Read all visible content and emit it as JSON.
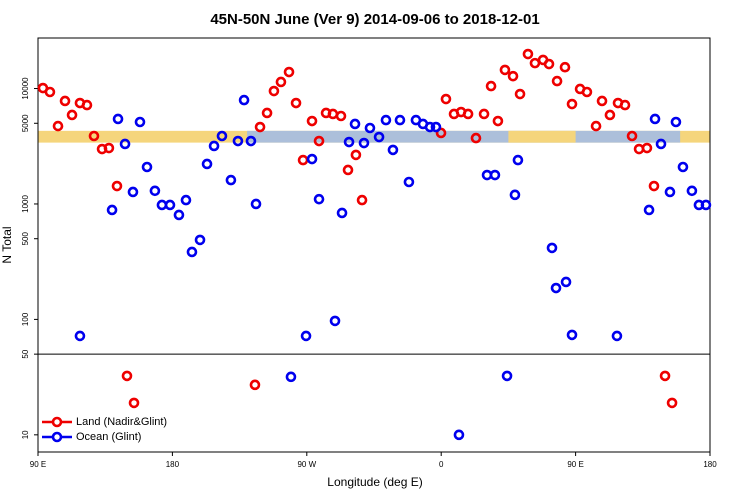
{
  "chart_data": {
    "type": "scatter",
    "title": "45N-50N June (Ver 9)   2014-09-06 to 2018-12-01",
    "xlabel": "Longitude (deg E)",
    "ylabel": "N Total",
    "log_y": true,
    "legend": "bottom-left",
    "xlim": [
      90,
      540
    ],
    "ylim": [
      7.1,
      27400
    ],
    "xticks": [
      {
        "value": 90,
        "label": "90 E"
      },
      180,
      {
        "value": 270,
        "label": "90 W"
      },
      {
        "value": 360,
        "label": "0"
      },
      {
        "value": 450,
        "label": "90 E"
      },
      {
        "value": 540,
        "label": "180"
      }
    ],
    "yticks": [
      10,
      50,
      100,
      500,
      1000,
      5000,
      10000
    ],
    "hline": 50,
    "band": {
      "ylim": [
        3400,
        4300
      ],
      "color": "#f5d57c",
      "color2": "#a8bedf"
    },
    "series": [
      {
        "name": "Land (Nadir&Glint)",
        "color": "#ee0000",
        "x": [
          93.3,
          98.0,
          103.4,
          108.1,
          112.8,
          118.1,
          122.8,
          127.5,
          132.9,
          137.5,
          142.9,
          149.6,
          154.3,
          235.3,
          238.7,
          243.4,
          248.0,
          252.7,
          258.1,
          262.8,
          267.5,
          273.5,
          278.2,
          282.9,
          287.5,
          292.9,
          297.6,
          302.9,
          307.0,
          359.9,
          363.2,
          368.6,
          373.3,
          378.0,
          383.3,
          388.7,
          393.4,
          398.0,
          402.7,
          408.1,
          412.8,
          418.1,
          422.8,
          428.2,
          432.2,
          437.6,
          442.9,
          447.6,
          453.0,
          457.6,
          463.7,
          467.7,
          473.0,
          478.4,
          483.1,
          487.8,
          492.5,
          497.8,
          502.5,
          509.9,
          514.6
        ],
        "values": [
          10100,
          9330,
          4730,
          7800,
          5900,
          7490,
          7190,
          3880,
          2990,
          3050,
          1430,
          32.4,
          18.9,
          27.1,
          4640,
          6140,
          9510,
          11400,
          13900,
          7490,
          2400,
          5230,
          3510,
          6140,
          6020,
          5780,
          1970,
          2660,
          1080,
          4120,
          8110,
          6020,
          6260,
          6020,
          3720,
          6020,
          10500,
          5230,
          14500,
          12800,
          8960,
          19900,
          16600,
          17700,
          16300,
          11600,
          15300,
          7340,
          9910,
          9330,
          4730,
          7800,
          5900,
          7490,
          7190,
          3880,
          2990,
          3050,
          1430,
          32.4,
          18.9
        ]
      },
      {
        "name": "Ocean (Glint)",
        "color": "#0000ee",
        "x": [
          118.1,
          139.6,
          143.6,
          148.3,
          153.6,
          158.3,
          163.0,
          168.3,
          173.0,
          178.4,
          184.4,
          189.1,
          193.1,
          198.5,
          203.2,
          207.9,
          213.2,
          219.2,
          223.9,
          228.0,
          232.6,
          236.0,
          259.4,
          269.5,
          273.5,
          278.2,
          288.9,
          293.6,
          298.3,
          302.3,
          308.3,
          312.3,
          318.4,
          323.0,
          327.7,
          332.4,
          338.4,
          343.1,
          347.8,
          352.5,
          356.5,
          371.9,
          390.7,
          396.0,
          404.1,
          409.4,
          411.4,
          434.2,
          436.9,
          443.6,
          447.6,
          477.7,
          499.2,
          503.2,
          507.2,
          513.2,
          517.2,
          521.9,
          527.9,
          532.6,
          537.3
        ],
        "values": [
          71.9,
          887,
          5450,
          3310,
          1270,
          5130,
          2090,
          1300,
          980,
          980,
          803,
          1080,
          384,
          488,
          2220,
          3180,
          3880,
          1610,
          3510,
          7940,
          3510,
          1000,
          31.8,
          71.9,
          2450,
          1100,
          97.0,
          836,
          3440,
          4930,
          3370,
          4550,
          3800,
          5330,
          2940,
          5330,
          1550,
          5330,
          4930,
          4640,
          4640,
          10,
          1780,
          1780,
          32.4,
          1200,
          2400,
          416,
          187,
          211,
          73.4,
          71.9,
          887,
          5450,
          3310,
          1270,
          5130,
          2090,
          1300,
          980,
          980
        ]
      }
    ]
  }
}
